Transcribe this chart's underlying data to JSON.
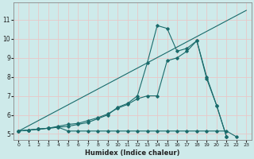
{
  "xlabel": "Humidex (Indice chaleur)",
  "xlim": [
    -0.5,
    23.5
  ],
  "ylim": [
    4.7,
    11.9
  ],
  "xticks": [
    0,
    1,
    2,
    3,
    4,
    5,
    6,
    7,
    8,
    9,
    10,
    11,
    12,
    13,
    14,
    15,
    16,
    17,
    18,
    19,
    20,
    21,
    22,
    23
  ],
  "yticks": [
    5,
    6,
    7,
    8,
    9,
    10,
    11
  ],
  "bg_color": "#ceeaea",
  "line_color": "#1a6b6b",
  "grid_color": "#b8d8d8",
  "lines": [
    {
      "x": [
        0,
        23
      ],
      "y": [
        5.15,
        11.5
      ],
      "marker": false
    },
    {
      "x": [
        0,
        1,
        2,
        3,
        4,
        5,
        6,
        7,
        8,
        9,
        10,
        11,
        12,
        13,
        14,
        15,
        16,
        17,
        18,
        19,
        20,
        21,
        22
      ],
      "y": [
        5.15,
        5.2,
        5.25,
        5.3,
        5.35,
        5.4,
        5.5,
        5.6,
        5.8,
        6.0,
        6.4,
        6.6,
        7.0,
        8.75,
        10.7,
        10.55,
        9.35,
        9.5,
        9.9,
        8.0,
        6.5,
        4.85,
        null
      ],
      "marker": true
    },
    {
      "x": [
        0,
        1,
        2,
        3,
        4,
        5,
        6,
        7,
        8,
        9,
        10,
        11,
        12,
        13,
        14,
        15,
        16,
        17,
        18,
        19,
        20,
        21,
        22
      ],
      "y": [
        5.15,
        5.2,
        5.25,
        5.3,
        5.4,
        5.5,
        5.55,
        5.7,
        5.85,
        6.05,
        6.35,
        6.55,
        6.85,
        7.0,
        7.0,
        8.85,
        9.0,
        9.35,
        9.9,
        7.9,
        6.5,
        4.85,
        null
      ],
      "marker": true
    },
    {
      "x": [
        0,
        1,
        2,
        3,
        4,
        5,
        6,
        7,
        8,
        9,
        10,
        11,
        12,
        13,
        14,
        15,
        16,
        17,
        18,
        19,
        20,
        21,
        22
      ],
      "y": [
        5.15,
        5.2,
        5.25,
        5.3,
        5.35,
        5.15,
        5.15,
        5.15,
        5.15,
        5.15,
        5.15,
        5.15,
        5.15,
        5.15,
        5.15,
        5.15,
        5.15,
        5.15,
        5.15,
        5.15,
        5.15,
        5.15,
        4.85
      ],
      "marker": true
    }
  ]
}
